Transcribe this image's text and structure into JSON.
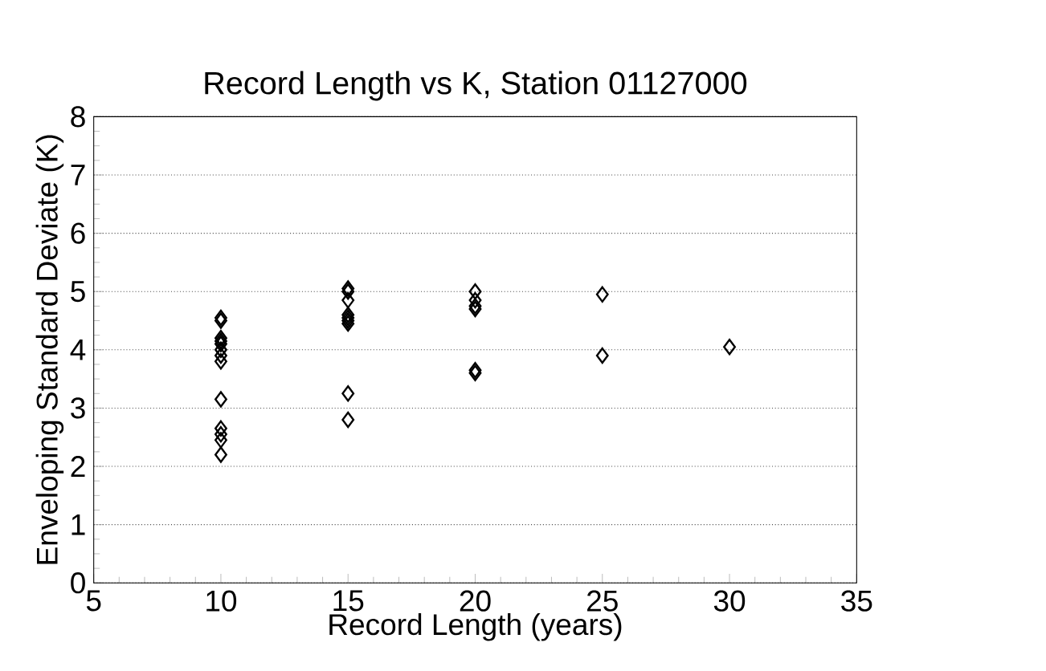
{
  "chart_data": {
    "type": "scatter",
    "title": "Record Length vs K, Station 01127000",
    "xlabel": "Record Length (years)",
    "ylabel": "Enveloping Standard Deviate (K)",
    "x": [
      10,
      10,
      10,
      10,
      10,
      10,
      10,
      10,
      10,
      10,
      10,
      10,
      10,
      15,
      15,
      15,
      15,
      15,
      15,
      15,
      15,
      15,
      20,
      20,
      20,
      20,
      20,
      20,
      25,
      25,
      30
    ],
    "values": [
      4.55,
      4.5,
      4.2,
      4.15,
      4.1,
      4.0,
      3.9,
      3.8,
      3.15,
      2.65,
      2.55,
      2.45,
      2.2,
      5.05,
      5.0,
      4.85,
      4.6,
      4.55,
      4.5,
      4.45,
      3.25,
      2.8,
      5.0,
      4.85,
      4.75,
      4.7,
      3.65,
      3.6,
      4.95,
      3.9,
      4.05
    ],
    "color": "#000000",
    "marker": "diamond",
    "grid": "y",
    "xlim": [
      5,
      35
    ],
    "xticks": [
      5,
      10,
      15,
      20,
      25,
      30,
      35
    ],
    "ylim": [
      0,
      8
    ],
    "yticks": [
      0,
      1,
      2,
      3,
      4,
      5,
      6,
      7,
      8
    ]
  }
}
